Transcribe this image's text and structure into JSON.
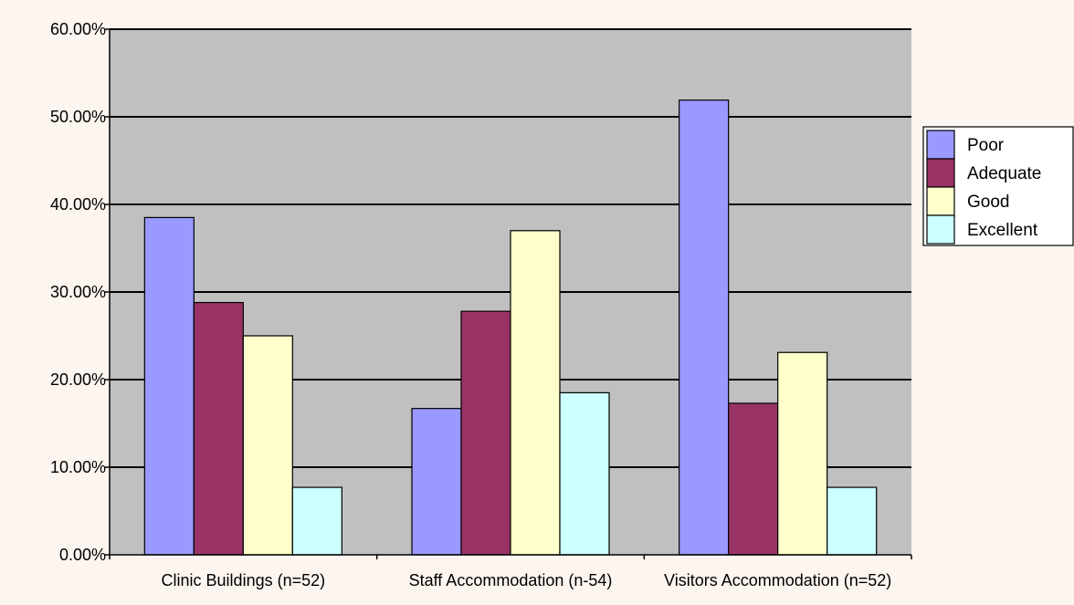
{
  "colors": {
    "page_background": "#fdf5ef",
    "plot_background": "#c0c0c0",
    "gridline": "#000000",
    "bar_outline": "#000000"
  },
  "chart_data": {
    "type": "bar",
    "categories": [
      "Clinic Buildings (n=52)",
      "Staff Accommodation (n-54)",
      "Visitors Accommodation (n=52)"
    ],
    "series": [
      {
        "name": "Poor",
        "color": "#9999ff",
        "values": [
          38.5,
          16.7,
          51.9
        ]
      },
      {
        "name": "Adequate",
        "color": "#993366",
        "values": [
          28.8,
          27.8,
          17.3
        ]
      },
      {
        "name": "Good",
        "color": "#ffffcc",
        "values": [
          25.0,
          37.0,
          23.1
        ]
      },
      {
        "name": "Excellent",
        "color": "#ccffff",
        "values": [
          7.7,
          18.5,
          7.7
        ]
      }
    ],
    "title": "",
    "xlabel": "",
    "ylabel": "",
    "ylim": [
      0,
      60
    ],
    "yticks": [
      0,
      10,
      20,
      30,
      40,
      50,
      60
    ],
    "ytick_labels": [
      "0.00%",
      "10.00%",
      "20.00%",
      "30.00%",
      "40.00%",
      "50.00%",
      "60.00%"
    ],
    "grid": true,
    "legend_position": "right"
  }
}
